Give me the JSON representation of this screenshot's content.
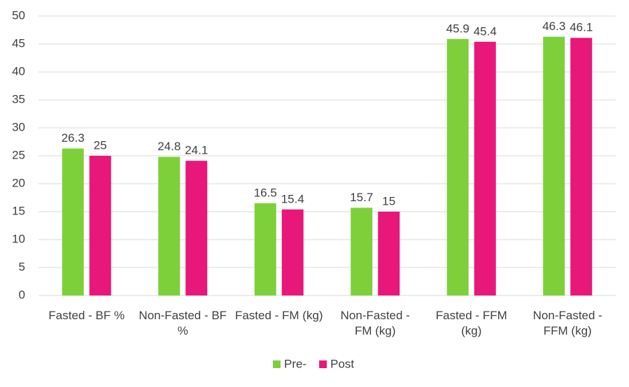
{
  "chart_data": {
    "type": "bar",
    "categories": [
      "Fasted - BF %",
      "Non-Fasted - BF %",
      "Fasted - FM (kg)",
      "Non-Fasted - FM (kg)",
      "Fasted - FFM (kg)",
      "Non-Fasted - FFM (kg)"
    ],
    "series": [
      {
        "name": "Pre-",
        "color": "#7ed03a",
        "values": [
          26.3,
          24.8,
          16.5,
          15.7,
          45.9,
          46.3
        ]
      },
      {
        "name": "Post",
        "color": "#e8177a",
        "values": [
          25,
          24.1,
          15.4,
          15,
          45.4,
          46.1
        ]
      }
    ],
    "ylim": [
      0,
      50
    ],
    "yticks": [
      0,
      5,
      10,
      15,
      20,
      25,
      30,
      35,
      40,
      45,
      50
    ],
    "grid": true,
    "legend": "bottom"
  }
}
